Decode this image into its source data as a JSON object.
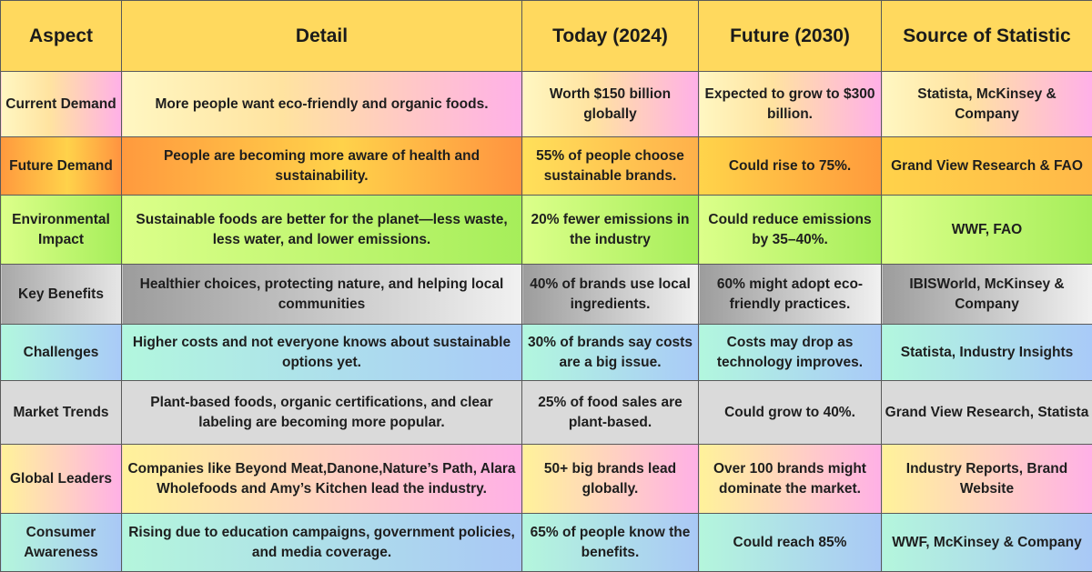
{
  "headers": [
    "Aspect",
    "Detail",
    "Today (2024)",
    "Future (2030)",
    "Source of Statistic"
  ],
  "rows": [
    {
      "aspect": "Current Demand",
      "detail": "More people want eco-friendly and organic foods.",
      "today": "Worth $150 billion globally",
      "future": "Expected to grow to $300 billion.",
      "source": "Statista, McKinsey & Company"
    },
    {
      "aspect": "Future Demand",
      "detail": "People are becoming more aware of health and sustainability.",
      "today": "55% of people choose sustainable brands.",
      "future": "Could rise to 75%.",
      "source": "Grand View Research & FAO"
    },
    {
      "aspect": "Environmental Impact",
      "detail": "Sustainable foods are better for the planet—less waste, less water, and lower emissions.",
      "today": "20% fewer emissions in the industry",
      "future": "Could reduce emissions by 35–40%.",
      "source": "WWF, FAO"
    },
    {
      "aspect": "Key Benefits",
      "detail": "Healthier choices, protecting nature, and helping local communities",
      "today": "40% of brands use local ingredients.",
      "future": "60% might adopt eco-friendly practices.",
      "source": "IBISWorld, McKinsey & Company"
    },
    {
      "aspect": "Challenges",
      "detail": "Higher costs and not everyone knows about sustainable options yet.",
      "today": "30% of brands say costs are a big issue.",
      "future": "Costs may drop as technology improves.",
      "source": "Statista, Industry Insights"
    },
    {
      "aspect": "Market Trends",
      "detail": "Plant-based foods, organic certifications, and clear labeling are becoming more popular.",
      "today": "25% of food sales are plant-based.",
      "future": "Could grow to 40%.",
      "source": "Grand View Research, Statista"
    },
    {
      "aspect": "Global Leaders",
      "detail": "Companies like Beyond Meat,Danone,Nature’s Path, Alara Wholefoods and Amy’s Kitchen lead the industry.",
      "today": "50+ big brands lead globally.",
      "future": "Over 100 brands might dominate the market.",
      "source": "Industry Reports, Brand Website"
    },
    {
      "aspect": "Consumer Awareness",
      "detail": "Rising due to education campaigns, government policies, and media coverage.",
      "today": "65% of people know the benefits.",
      "future": "Could reach 85%",
      "source": "WWF, McKinsey & Company"
    }
  ]
}
